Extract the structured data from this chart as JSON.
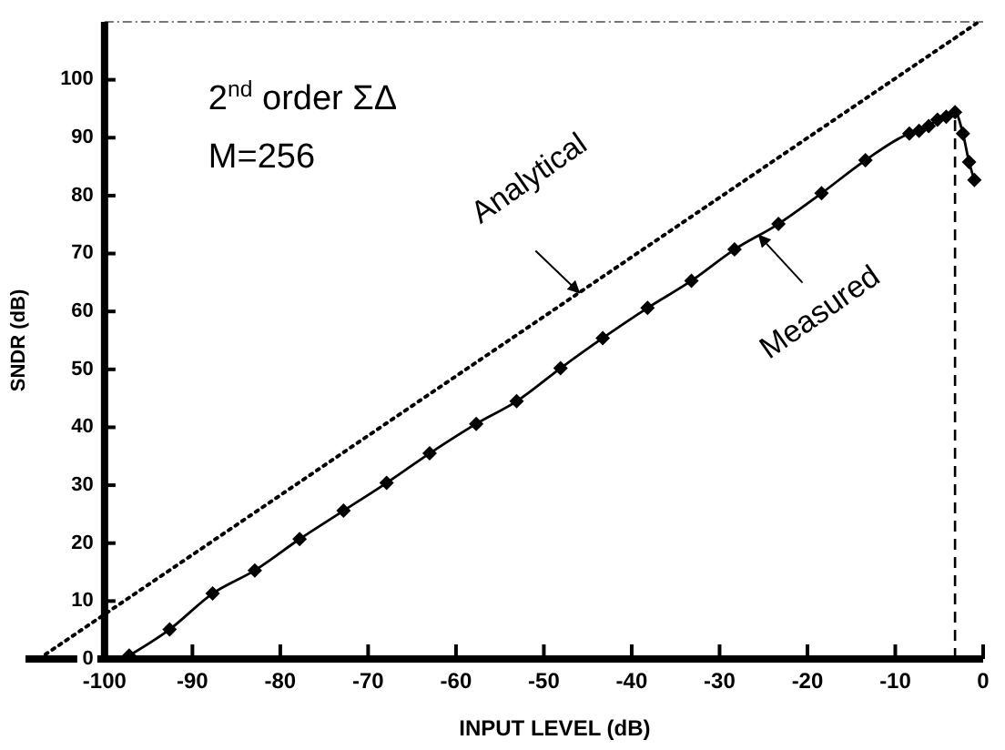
{
  "chart_data": {
    "type": "line",
    "xlabel": "INPUT LEVEL (dB)",
    "ylabel": "SNDR (dB)",
    "xlim": [
      -109,
      0
    ],
    "ylim": [
      0,
      110
    ],
    "xticks": [
      -100,
      -90,
      -80,
      -70,
      -60,
      -50,
      -40,
      -30,
      -20,
      -10,
      0
    ],
    "yticks": [
      0,
      10,
      20,
      30,
      40,
      50,
      60,
      70,
      80,
      90,
      100
    ],
    "grid": false,
    "legend": false,
    "series": [
      {
        "name": "Analytical",
        "color": "#000000",
        "line_style": "dotted",
        "marker": "none",
        "x": [
          -107.5,
          -0.5
        ],
        "values": [
          0,
          110
        ]
      },
      {
        "name": "Measured",
        "color": "#000000",
        "line_style": "solid",
        "marker": "diamond",
        "x": [
          -97.2,
          -92.6,
          -87.7,
          -82.9,
          -77.8,
          -72.8,
          -67.9,
          -63,
          -57.7,
          -53.1,
          -48.1,
          -43.3,
          -38.2,
          -33.2,
          -28.3,
          -23.3,
          -18.4,
          -13.4,
          -8.4,
          -7.3,
          -6.2,
          -5.2,
          -4.2,
          -3.2,
          -2.3,
          -1.6,
          -1
        ],
        "values": [
          0.6,
          5.1,
          11.3,
          15.3,
          20.7,
          25.6,
          30.4,
          35.5,
          40.6,
          44.5,
          50.2,
          55.4,
          60.6,
          65.3,
          70.7,
          75.1,
          80.4,
          86.1,
          90.7,
          91.2,
          92,
          93.1,
          93.6,
          94.4,
          90.7,
          85.8,
          82.7
        ]
      }
    ],
    "ref_lines": [
      {
        "axis": "x",
        "value": -3.2,
        "line_style": "dashed"
      }
    ],
    "annotations": [
      "2$^{nd}$ order ΣΔ",
      "M=256"
    ]
  }
}
